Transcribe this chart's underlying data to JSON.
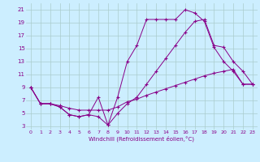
{
  "xlabel": "Windchill (Refroidissement éolien,°C)",
  "bg_color": "#cceeff",
  "grid_color": "#aacccc",
  "line_color": "#880088",
  "xlim": [
    -0.5,
    23.5
  ],
  "ylim": [
    2.5,
    22
  ],
  "yticks": [
    3,
    5,
    7,
    9,
    11,
    13,
    15,
    17,
    19,
    21
  ],
  "xticks": [
    0,
    1,
    2,
    3,
    4,
    5,
    6,
    7,
    8,
    9,
    10,
    11,
    12,
    13,
    14,
    15,
    16,
    17,
    18,
    19,
    20,
    21,
    22,
    23
  ],
  "line1_x": [
    0,
    1,
    2,
    3,
    4,
    5,
    6,
    7,
    8,
    9,
    10,
    11,
    12,
    13,
    14,
    15,
    16,
    17,
    18,
    19,
    20,
    21,
    22,
    23
  ],
  "line1_y": [
    9.0,
    6.5,
    6.5,
    6.0,
    4.8,
    4.5,
    4.8,
    7.5,
    3.2,
    7.5,
    13.0,
    15.5,
    19.5,
    19.5,
    19.5,
    19.5,
    21.0,
    20.5,
    19.2,
    15.2,
    13.0,
    11.5,
    9.5,
    9.5
  ],
  "line2_x": [
    0,
    1,
    2,
    3,
    4,
    5,
    6,
    7,
    8,
    9,
    10,
    11,
    12,
    13,
    14,
    15,
    16,
    17,
    18,
    19,
    20,
    21,
    22,
    23
  ],
  "line2_y": [
    9.0,
    6.5,
    6.5,
    6.2,
    5.8,
    5.5,
    5.5,
    5.5,
    5.5,
    6.0,
    6.8,
    7.2,
    7.8,
    8.3,
    8.8,
    9.3,
    9.8,
    10.3,
    10.8,
    11.2,
    11.5,
    11.8,
    9.5,
    9.5
  ],
  "line3_x": [
    0,
    1,
    2,
    3,
    4,
    5,
    6,
    7,
    8,
    9,
    10,
    11,
    12,
    13,
    14,
    15,
    16,
    17,
    18,
    19,
    20,
    21,
    22,
    23
  ],
  "line3_y": [
    9.0,
    6.5,
    6.5,
    6.0,
    4.8,
    4.5,
    4.8,
    4.5,
    3.2,
    5.0,
    6.5,
    7.5,
    9.5,
    11.5,
    13.5,
    15.5,
    17.5,
    19.2,
    19.5,
    15.5,
    15.2,
    13.0,
    11.5,
    9.5
  ]
}
